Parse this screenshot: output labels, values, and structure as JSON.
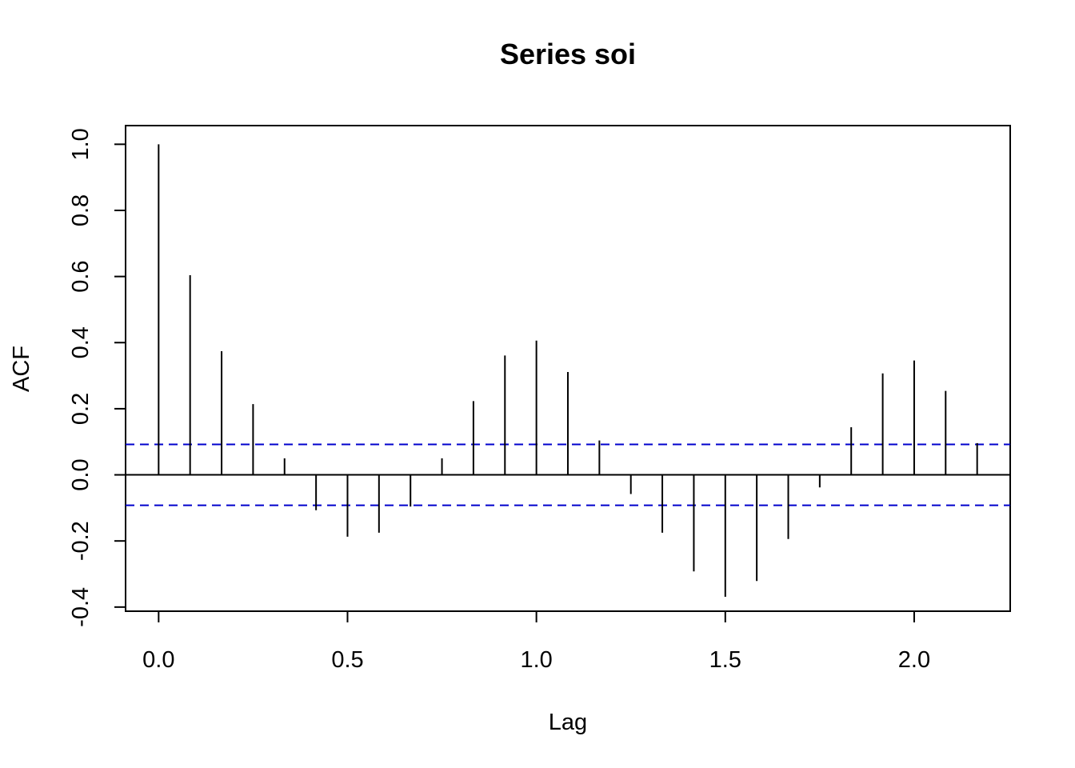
{
  "chart_data": {
    "type": "bar",
    "title": "Series  soi",
    "xlabel": "Lag",
    "ylabel": "ACF",
    "xlim": [
      -0.0875,
      2.2542
    ],
    "ylim": [
      -0.4125,
      1.0565
    ],
    "x_ticks": [
      0.0,
      0.5,
      1.0,
      1.5,
      2.0
    ],
    "x_tick_labels": [
      "0.0",
      "0.5",
      "1.0",
      "1.5",
      "2.0"
    ],
    "y_ticks": [
      -0.4,
      -0.2,
      0.0,
      0.2,
      0.4,
      0.6,
      0.8,
      1.0
    ],
    "y_tick_labels": [
      "-0.4",
      "-0.2",
      "0.0",
      "0.2",
      "0.4",
      "0.6",
      "0.8",
      "1.0"
    ],
    "x": [
      0.0,
      0.0833,
      0.1667,
      0.25,
      0.3333,
      0.4167,
      0.5,
      0.5833,
      0.6667,
      0.75,
      0.8333,
      0.9167,
      1.0,
      1.0833,
      1.1667,
      1.25,
      1.3333,
      1.4167,
      1.5,
      1.5833,
      1.6667,
      1.75,
      1.8333,
      1.9167,
      2.0,
      2.0833,
      2.1667
    ],
    "values": [
      1.0,
      0.604,
      0.374,
      0.214,
      0.05,
      -0.107,
      -0.187,
      -0.175,
      -0.096,
      0.05,
      0.223,
      0.361,
      0.406,
      0.311,
      0.104,
      -0.058,
      -0.175,
      -0.292,
      -0.369,
      -0.321,
      -0.194,
      -0.038,
      0.144,
      0.307,
      0.346,
      0.254,
      0.096
    ],
    "confidence_bound": 0.0922,
    "zero_line": true,
    "grid": false,
    "colors": {
      "bars": "#000000",
      "confidence_lines": "#0000cc",
      "frame": "#000000"
    }
  }
}
